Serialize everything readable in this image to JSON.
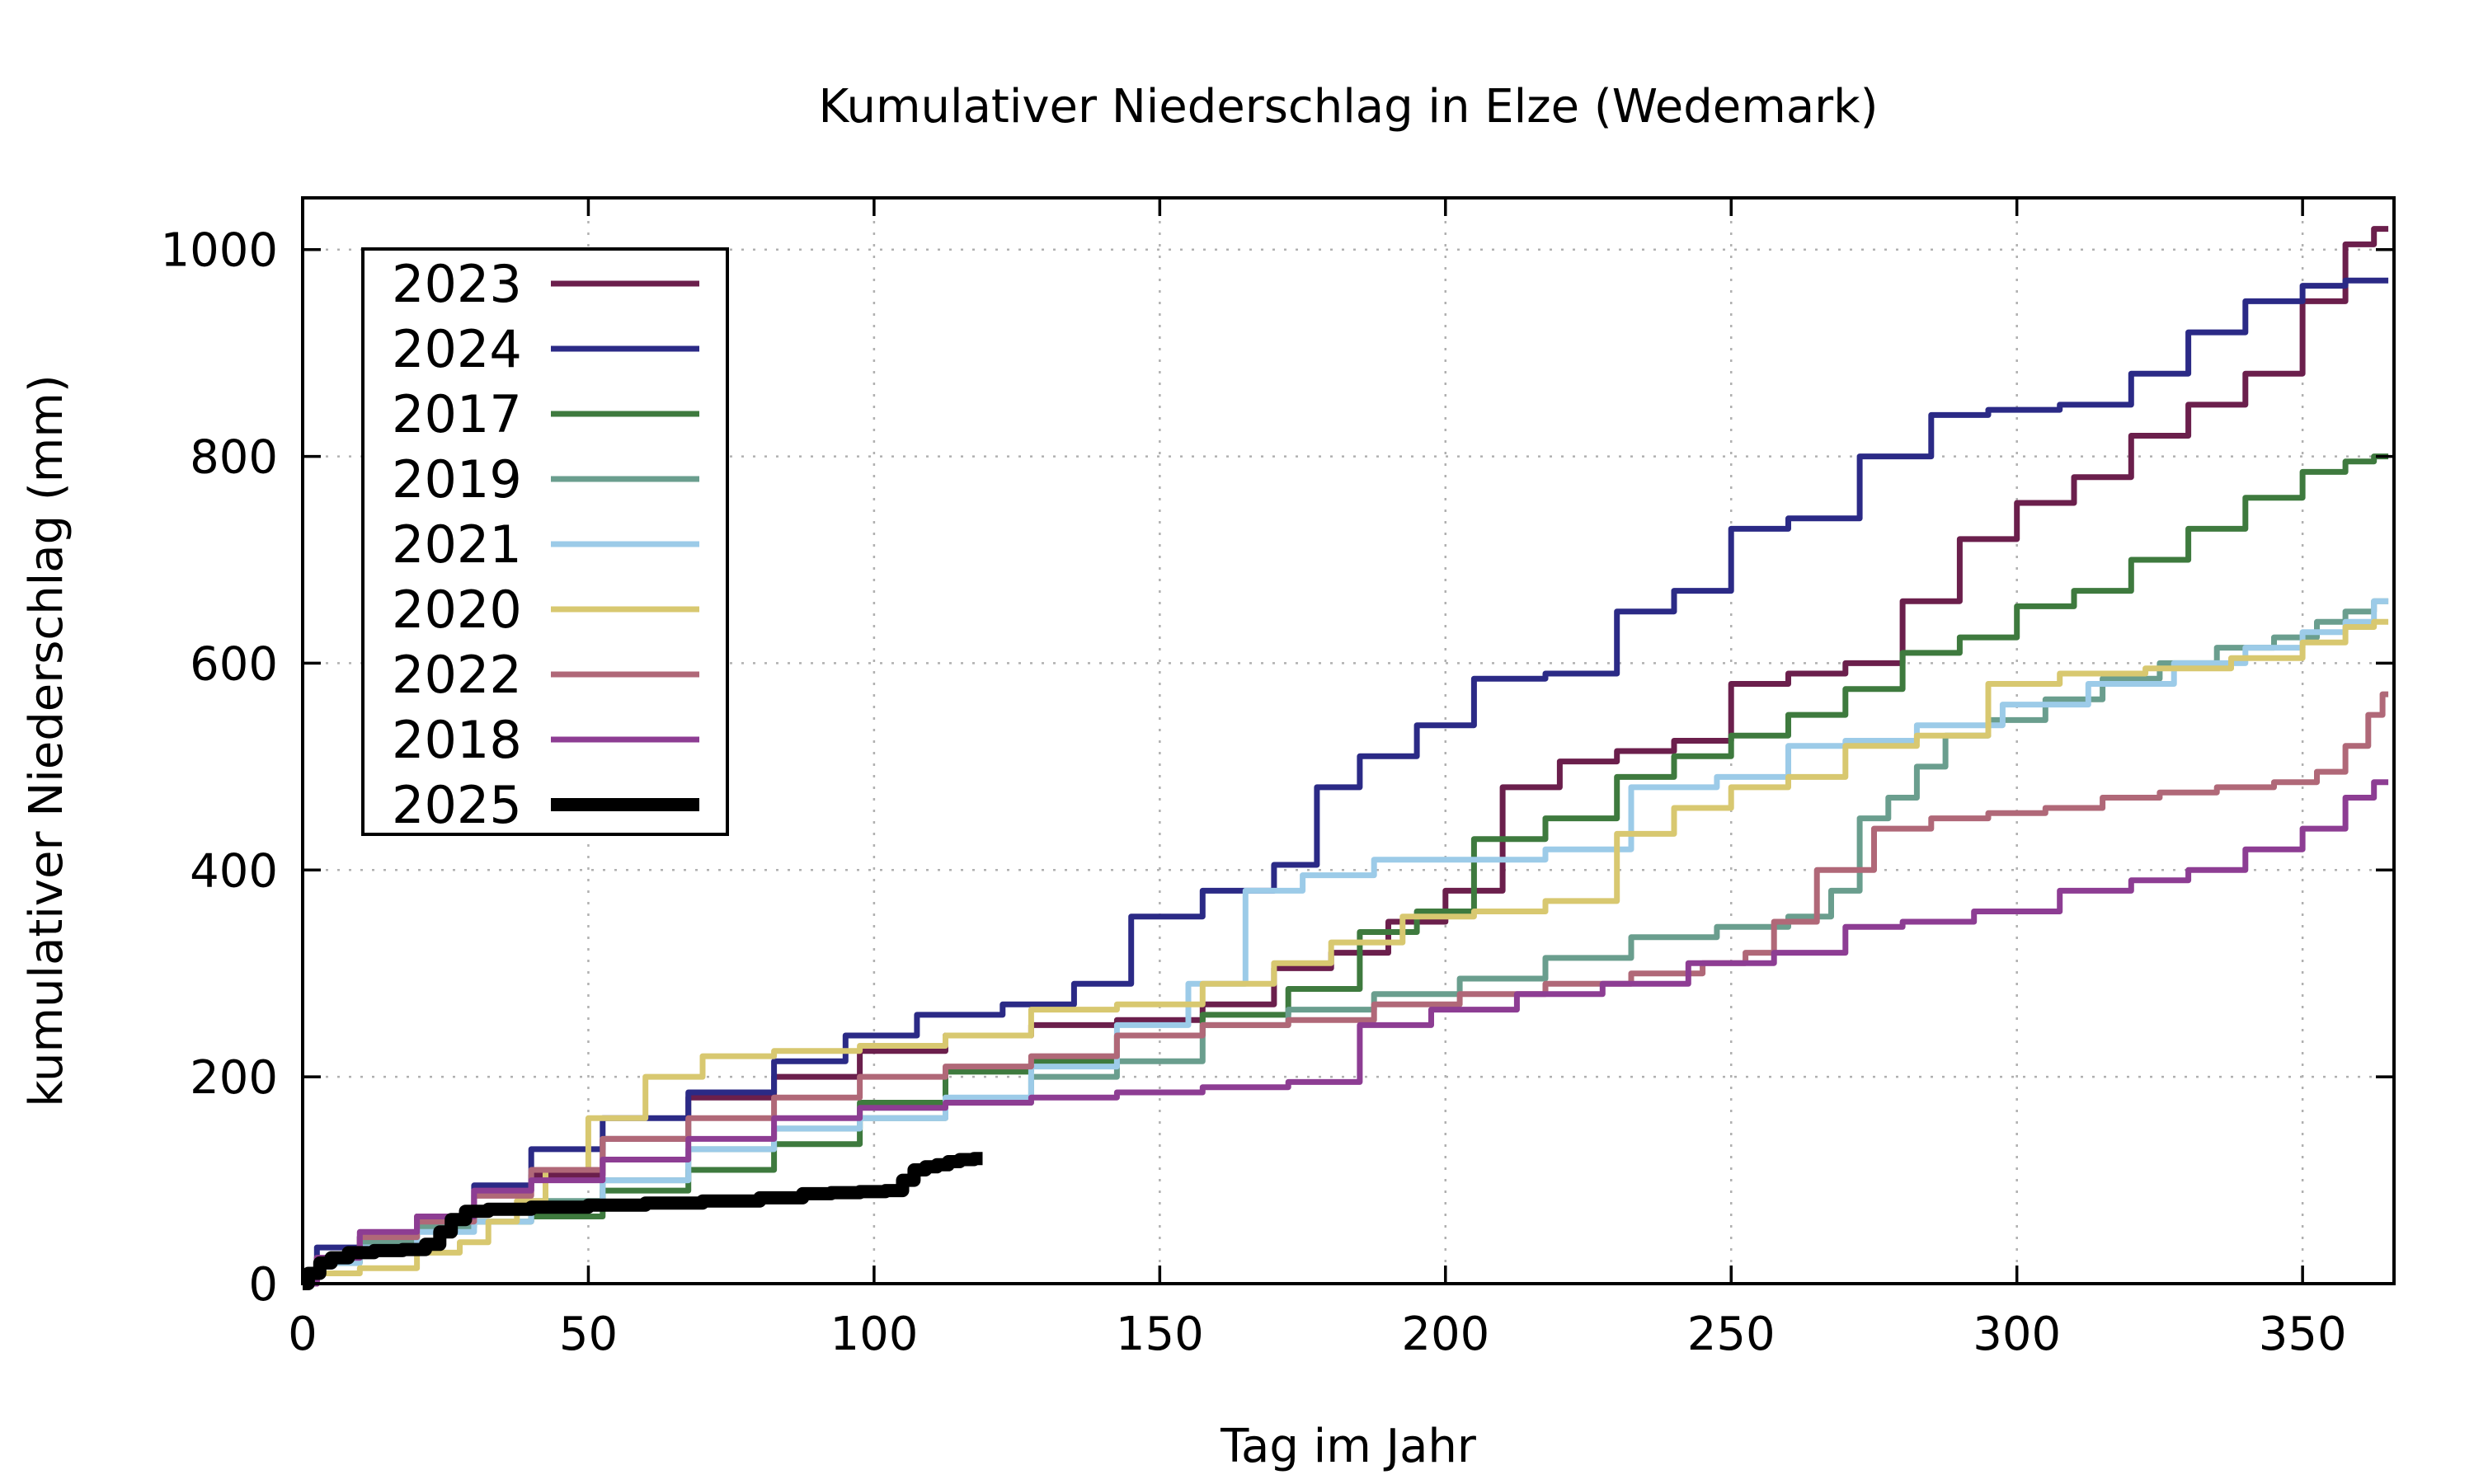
{
  "chart_data": {
    "type": "line",
    "title": "Kumulativer Niederschlag in Elze (Wedemark)",
    "xlabel": "Tag im Jahr",
    "ylabel": "kumulativer Niederschlag (mm)",
    "xlim": [
      0,
      366
    ],
    "ylim": [
      0,
      1050
    ],
    "xticks": [
      0,
      50,
      100,
      150,
      200,
      250,
      300,
      350
    ],
    "yticks": [
      0,
      200,
      400,
      600,
      800,
      1000
    ],
    "xtick_labels": [
      "0",
      "50",
      "100",
      "150",
      "200",
      "250",
      "300",
      "350"
    ],
    "ytick_labels": [
      "0",
      "200",
      "400",
      "600",
      "800",
      "1000"
    ],
    "grid": true,
    "legend_position": "top-left",
    "series": [
      {
        "name": "2023",
        "color": "#6b1f4c",
        "width": 7,
        "x": [
          0,
          5,
          15,
          25,
          35,
          45,
          60,
          75,
          90,
          105,
          120,
          135,
          150,
          165,
          175,
          185,
          195,
          205,
          215,
          225,
          235,
          245,
          255,
          265,
          275,
          285,
          295,
          305,
          315,
          325,
          335,
          345,
          355,
          360,
          365
        ],
        "y": [
          0,
          25,
          45,
          65,
          90,
          105,
          140,
          180,
          200,
          225,
          240,
          250,
          255,
          270,
          305,
          320,
          350,
          380,
          480,
          505,
          515,
          525,
          580,
          590,
          600,
          660,
          720,
          755,
          780,
          820,
          850,
          880,
          950,
          1005,
          1020
        ]
      },
      {
        "name": "2024",
        "color": "#2b2a86",
        "width": 7,
        "x": [
          0,
          5,
          15,
          25,
          35,
          45,
          60,
          75,
          90,
          100,
          115,
          130,
          140,
          150,
          165,
          175,
          180,
          190,
          200,
          210,
          225,
          235,
          245,
          255,
          265,
          280,
          290,
          300,
          315,
          325,
          335,
          345,
          355,
          360,
          365
        ],
        "y": [
          0,
          35,
          45,
          60,
          95,
          130,
          160,
          185,
          215,
          240,
          260,
          270,
          290,
          355,
          380,
          405,
          480,
          510,
          540,
          585,
          590,
          650,
          670,
          730,
          740,
          800,
          840,
          845,
          850,
          880,
          920,
          950,
          965,
          970,
          970
        ]
      },
      {
        "name": "2017",
        "color": "#3e7a3e",
        "width": 7,
        "x": [
          0,
          5,
          15,
          25,
          35,
          45,
          60,
          75,
          90,
          105,
          120,
          135,
          150,
          165,
          180,
          190,
          200,
          210,
          225,
          235,
          245,
          255,
          265,
          275,
          285,
          295,
          305,
          315,
          325,
          335,
          345,
          355,
          360,
          365
        ],
        "y": [
          0,
          20,
          40,
          55,
          60,
          65,
          90,
          110,
          135,
          175,
          205,
          215,
          240,
          260,
          285,
          340,
          360,
          430,
          450,
          490,
          510,
          530,
          550,
          575,
          610,
          625,
          655,
          670,
          700,
          730,
          760,
          785,
          795,
          800
        ]
      },
      {
        "name": "2019",
        "color": "#6a9e8e",
        "width": 7,
        "x": [
          0,
          5,
          15,
          25,
          35,
          45,
          60,
          75,
          90,
          105,
          120,
          135,
          150,
          165,
          180,
          195,
          210,
          225,
          240,
          255,
          265,
          270,
          275,
          280,
          285,
          290,
          300,
          310,
          320,
          330,
          340,
          350,
          355,
          360,
          365
        ],
        "y": [
          0,
          25,
          40,
          55,
          70,
          80,
          100,
          130,
          150,
          160,
          175,
          200,
          215,
          250,
          265,
          280,
          295,
          315,
          335,
          345,
          355,
          380,
          450,
          470,
          500,
          530,
          545,
          565,
          585,
          600,
          615,
          625,
          640,
          650,
          660
        ]
      },
      {
        "name": "2021",
        "color": "#9ccbe8",
        "width": 7,
        "x": [
          0,
          5,
          15,
          25,
          35,
          45,
          60,
          75,
          90,
          105,
          120,
          135,
          150,
          160,
          170,
          180,
          195,
          210,
          225,
          240,
          255,
          265,
          275,
          290,
          305,
          320,
          335,
          345,
          355,
          360,
          365
        ],
        "y": [
          0,
          20,
          35,
          50,
          60,
          75,
          100,
          130,
          150,
          160,
          180,
          210,
          250,
          290,
          380,
          395,
          410,
          410,
          420,
          480,
          490,
          520,
          525,
          540,
          560,
          580,
          600,
          615,
          630,
          640,
          660
        ]
      },
      {
        "name": "2020",
        "color": "#d8c870",
        "width": 7,
        "x": [
          0,
          5,
          15,
          25,
          30,
          35,
          40,
          45,
          55,
          65,
          75,
          90,
          105,
          120,
          135,
          150,
          165,
          175,
          185,
          200,
          210,
          225,
          235,
          245,
          255,
          265,
          275,
          290,
          300,
          315,
          330,
          345,
          355,
          360,
          365
        ],
        "y": [
          0,
          10,
          15,
          30,
          40,
          60,
          80,
          110,
          160,
          200,
          220,
          225,
          230,
          240,
          265,
          270,
          290,
          310,
          330,
          355,
          360,
          370,
          435,
          460,
          480,
          490,
          520,
          530,
          580,
          590,
          595,
          605,
          620,
          635,
          640
        ]
      },
      {
        "name": "2022",
        "color": "#b06878",
        "width": 7,
        "x": [
          0,
          5,
          15,
          25,
          35,
          45,
          60,
          75,
          90,
          105,
          120,
          135,
          150,
          165,
          180,
          195,
          210,
          225,
          240,
          250,
          255,
          260,
          270,
          280,
          290,
          300,
          310,
          320,
          330,
          340,
          350,
          355,
          360,
          363,
          365
        ],
        "y": [
          0,
          25,
          45,
          60,
          85,
          110,
          140,
          160,
          180,
          200,
          210,
          220,
          240,
          250,
          255,
          270,
          280,
          290,
          300,
          310,
          320,
          350,
          400,
          440,
          450,
          455,
          460,
          470,
          475,
          480,
          485,
          495,
          520,
          550,
          570
        ]
      },
      {
        "name": "2018",
        "color": "#8d3d93",
        "width": 7,
        "x": [
          0,
          5,
          15,
          25,
          35,
          45,
          60,
          75,
          90,
          105,
          120,
          135,
          150,
          165,
          180,
          190,
          205,
          220,
          235,
          250,
          265,
          275,
          285,
          300,
          315,
          325,
          335,
          345,
          355,
          360,
          365
        ],
        "y": [
          0,
          25,
          50,
          65,
          90,
          100,
          120,
          140,
          160,
          170,
          175,
          180,
          185,
          190,
          195,
          250,
          265,
          280,
          290,
          310,
          320,
          345,
          350,
          360,
          380,
          390,
          400,
          420,
          440,
          470,
          485
        ]
      },
      {
        "name": "2025",
        "color": "#000000",
        "width": 16,
        "x": [
          0,
          2,
          4,
          6,
          10,
          15,
          20,
          23,
          25,
          27,
          30,
          35,
          45,
          55,
          65,
          75,
          85,
          90,
          95,
          100,
          104,
          106,
          108,
          110,
          112,
          114,
          116,
          119
        ],
        "y": [
          0,
          10,
          20,
          25,
          30,
          32,
          33,
          38,
          50,
          62,
          70,
          72,
          74,
          76,
          78,
          80,
          83,
          87,
          88,
          89,
          90,
          100,
          110,
          113,
          115,
          118,
          120,
          121
        ]
      }
    ]
  }
}
